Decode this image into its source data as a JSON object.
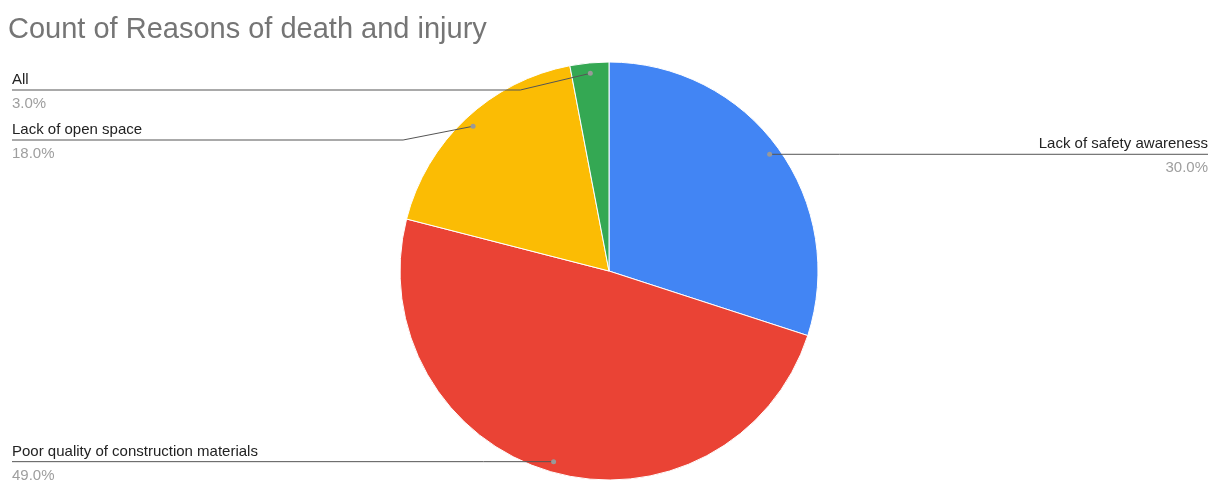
{
  "chart_data": {
    "type": "pie",
    "title": "Count of Reasons of death and injury",
    "categories": [
      "Lack of safety awareness",
      "Poor quality of construction materials",
      "Lack of open space",
      "All"
    ],
    "values": [
      30,
      49,
      18,
      3
    ],
    "value_labels": [
      "30.0%",
      "49.0%",
      "18.0%",
      "3.0%"
    ],
    "colors": [
      "#4285f4",
      "#ea4335",
      "#fbbc04",
      "#34a853"
    ]
  }
}
